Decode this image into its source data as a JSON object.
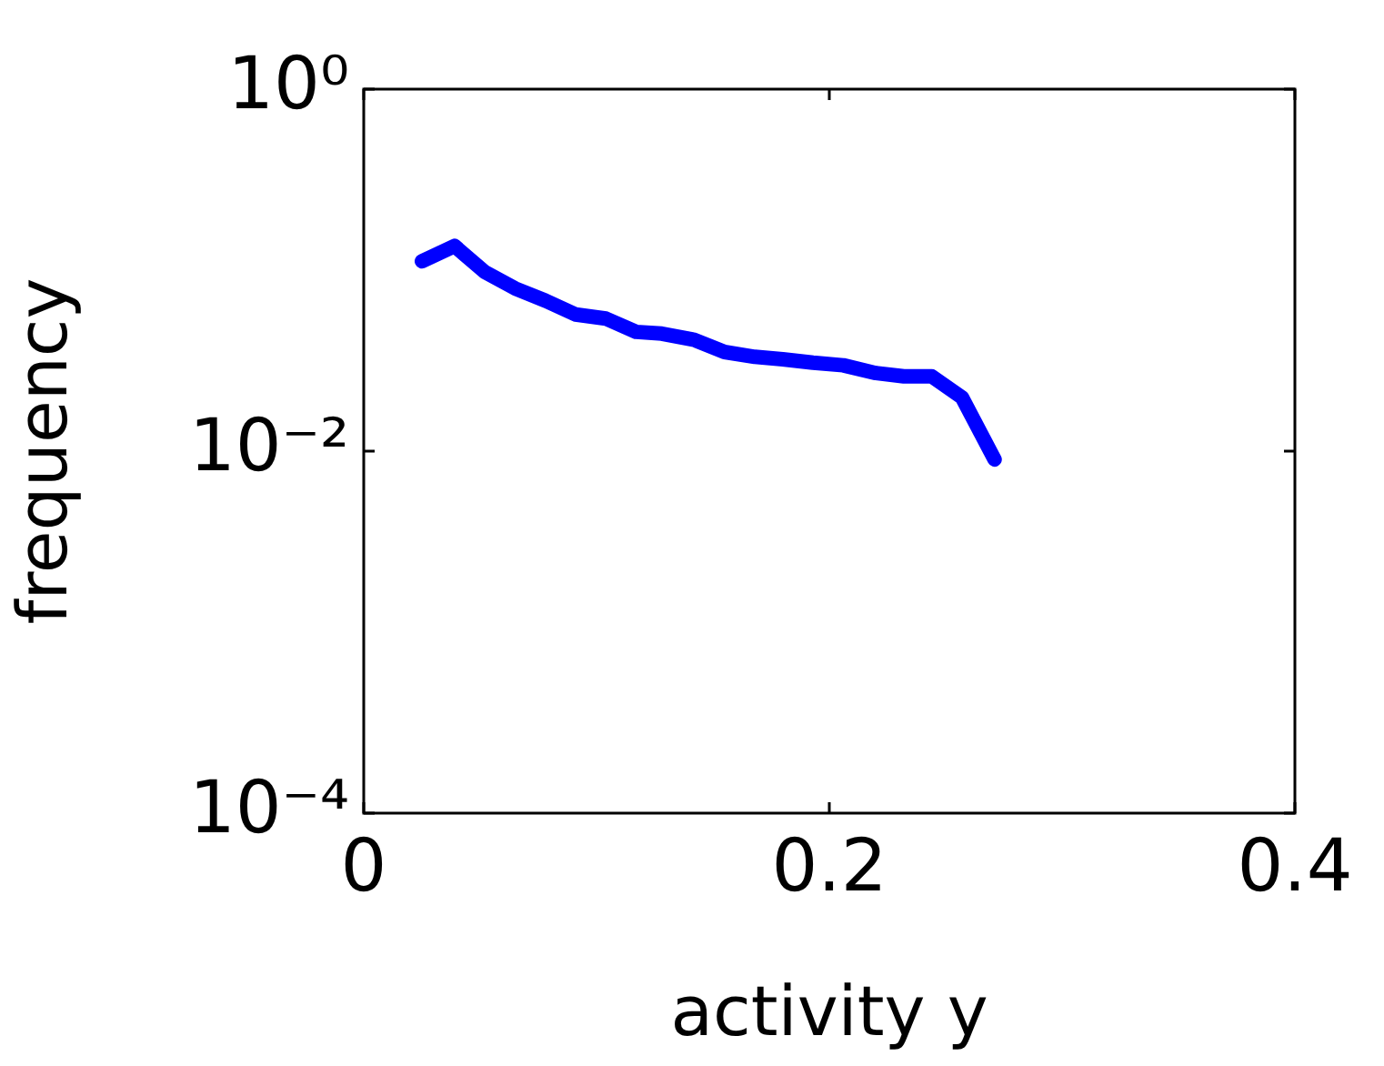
{
  "chart_data": {
    "type": "line",
    "xlabel": "activity y",
    "ylabel": "frequency",
    "x": [
      0.025,
      0.039,
      0.052,
      0.065,
      0.078,
      0.091,
      0.104,
      0.117,
      0.128,
      0.142,
      0.155,
      0.168,
      0.18,
      0.193,
      0.206,
      0.22,
      0.232,
      0.244,
      0.257,
      0.271
    ],
    "series": [
      {
        "color": "#0000ff",
        "values": [
          0.112,
          0.136,
          0.0977,
          0.0793,
          0.0679,
          0.0569,
          0.054,
          0.0456,
          0.0446,
          0.0412,
          0.0353,
          0.0332,
          0.0322,
          0.0308,
          0.0298,
          0.027,
          0.0259,
          0.0259,
          0.0198,
          0.009
        ]
      }
    ],
    "xlim": [
      0,
      0.4
    ],
    "xticks": [
      0,
      0.2,
      0.4
    ],
    "ylim": [
      0.0001,
      1
    ],
    "yticks": [
      {
        "value": 0.0001,
        "label": "10⁻⁴"
      },
      {
        "value": 0.01,
        "label": "10⁻²"
      },
      {
        "value": 1,
        "label": "10⁰"
      }
    ],
    "log": "y",
    "grid": false,
    "legend": false,
    "marker": "none",
    "line_style": "solid"
  }
}
